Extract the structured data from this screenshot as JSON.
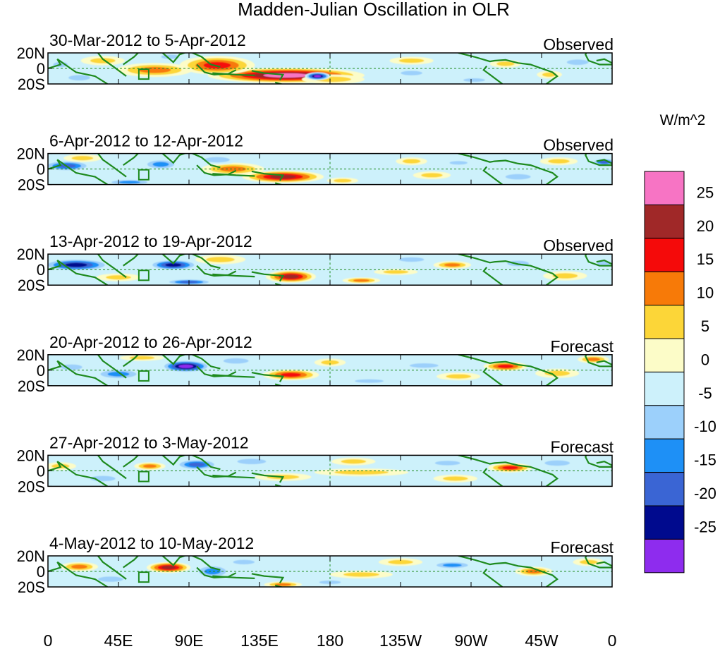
{
  "chart_data": {
    "type": "heatmap",
    "title": "Madden-Julian Oscillation in OLR",
    "variable": "OLR anomaly",
    "units_label": "W/m^2",
    "x_ticks": [
      "0",
      "45E",
      "90E",
      "135E",
      "180",
      "135W",
      "90W",
      "45W",
      "0"
    ],
    "x_range_deg": [
      0,
      360
    ],
    "y_ticks": [
      "20N",
      "0",
      "20S"
    ],
    "y_range_deg": [
      -20,
      20
    ],
    "legend": {
      "placement": "right",
      "tick_labels": [
        "25",
        "20",
        "15",
        "10",
        "5",
        "0",
        "-5",
        "-10",
        "-15",
        "-20",
        "-25"
      ],
      "colors": [
        "#f774c4",
        "#a02828",
        "#f50a0a",
        "#f77a08",
        "#fcd638",
        "#fcfcc8",
        "#cdf1fb",
        "#9cd0fb",
        "#1e90f6",
        "#3a65d4",
        "#000a8e",
        "#8e2cee"
      ]
    },
    "panels": [
      {
        "period": "30-Mar-2012 to 5-Apr-2012",
        "status": "Observed",
        "features": [
          {
            "lon": 152,
            "lat": -9,
            "rx": 50,
            "ry": 10,
            "value": 25
          },
          {
            "lon": 108,
            "lat": 4,
            "rx": 24,
            "ry": 12,
            "value": 18
          },
          {
            "lon": 68,
            "lat": -2,
            "rx": 24,
            "ry": 9,
            "value": 12
          },
          {
            "lon": 35,
            "lat": 10,
            "rx": 14,
            "ry": 6,
            "value": 8
          },
          {
            "lon": 182,
            "lat": -14,
            "rx": 20,
            "ry": 6,
            "value": 7
          },
          {
            "lon": 172,
            "lat": -10,
            "rx": 8,
            "ry": 5,
            "value": -27
          },
          {
            "lon": 78,
            "lat": 15,
            "rx": 10,
            "ry": 5,
            "value": -8
          },
          {
            "lon": 20,
            "lat": -12,
            "rx": 12,
            "ry": 6,
            "value": -9
          },
          {
            "lon": 8,
            "lat": 5,
            "rx": 8,
            "ry": 6,
            "value": -6
          },
          {
            "lon": 232,
            "lat": 10,
            "rx": 14,
            "ry": 5,
            "value": 7
          },
          {
            "lon": 232,
            "lat": -6,
            "rx": 12,
            "ry": 5,
            "value": -6
          },
          {
            "lon": 292,
            "lat": 6,
            "rx": 10,
            "ry": 5,
            "value": 7
          },
          {
            "lon": 338,
            "lat": 8,
            "rx": 12,
            "ry": 6,
            "value": -9
          },
          {
            "lon": 272,
            "lat": -15,
            "rx": 12,
            "ry": 4,
            "value": -6
          },
          {
            "lon": 320,
            "lat": -8,
            "rx": 8,
            "ry": 5,
            "value": 6
          }
        ]
      },
      {
        "period": "6-Apr-2012 to 12-Apr-2012",
        "status": "Observed",
        "features": [
          {
            "lon": 150,
            "lat": -10,
            "rx": 26,
            "ry": 8,
            "value": 23
          },
          {
            "lon": 118,
            "lat": 0,
            "rx": 20,
            "ry": 8,
            "value": 11
          },
          {
            "lon": 188,
            "lat": -15,
            "rx": 10,
            "ry": 4,
            "value": 9
          },
          {
            "lon": 72,
            "lat": 6,
            "rx": 12,
            "ry": 7,
            "value": -12
          },
          {
            "lon": 12,
            "lat": 4,
            "rx": 16,
            "ry": 7,
            "value": -18
          },
          {
            "lon": 52,
            "lat": -17,
            "rx": 16,
            "ry": 4,
            "value": -14
          },
          {
            "lon": 108,
            "lat": 12,
            "rx": 14,
            "ry": 6,
            "value": -8
          },
          {
            "lon": 22,
            "lat": 14,
            "rx": 12,
            "ry": 5,
            "value": 9
          },
          {
            "lon": 232,
            "lat": 10,
            "rx": 10,
            "ry": 5,
            "value": 7
          },
          {
            "lon": 245,
            "lat": -8,
            "rx": 12,
            "ry": 5,
            "value": 6
          },
          {
            "lon": 262,
            "lat": 8,
            "rx": 10,
            "ry": 4,
            "value": -7
          },
          {
            "lon": 300,
            "lat": -10,
            "rx": 14,
            "ry": 6,
            "value": -8
          },
          {
            "lon": 355,
            "lat": 9,
            "rx": 8,
            "ry": 5,
            "value": -18
          },
          {
            "lon": 326,
            "lat": 10,
            "rx": 12,
            "ry": 5,
            "value": 6
          }
        ]
      },
      {
        "period": "13-Apr-2012 to 19-Apr-2012",
        "status": "Observed",
        "features": [
          {
            "lon": 155,
            "lat": -9,
            "rx": 16,
            "ry": 8,
            "value": 24
          },
          {
            "lon": 18,
            "lat": 6,
            "rx": 22,
            "ry": 8,
            "value": -22
          },
          {
            "lon": 80,
            "lat": 6,
            "rx": 16,
            "ry": 7,
            "value": -22
          },
          {
            "lon": 90,
            "lat": -16,
            "rx": 16,
            "ry": 4,
            "value": -18
          },
          {
            "lon": 110,
            "lat": 13,
            "rx": 16,
            "ry": 6,
            "value": 8
          },
          {
            "lon": 45,
            "lat": -10,
            "rx": 14,
            "ry": 5,
            "value": 7
          },
          {
            "lon": 200,
            "lat": -14,
            "rx": 12,
            "ry": 4,
            "value": 13
          },
          {
            "lon": 222,
            "lat": -3,
            "rx": 14,
            "ry": 4,
            "value": 8
          },
          {
            "lon": 258,
            "lat": 6,
            "rx": 12,
            "ry": 5,
            "value": 12
          },
          {
            "lon": 232,
            "lat": 13,
            "rx": 14,
            "ry": 5,
            "value": -6
          },
          {
            "lon": 300,
            "lat": 8,
            "rx": 12,
            "ry": 6,
            "value": -9
          },
          {
            "lon": 330,
            "lat": -8,
            "rx": 14,
            "ry": 6,
            "value": 7
          },
          {
            "lon": 355,
            "lat": 8,
            "rx": 8,
            "ry": 6,
            "value": -9
          }
        ]
      },
      {
        "period": "20-Apr-2012 to 26-Apr-2012",
        "status": "Forecast",
        "features": [
          {
            "lon": 88,
            "lat": 5,
            "rx": 16,
            "ry": 8,
            "value": -26
          },
          {
            "lon": 155,
            "lat": -6,
            "rx": 18,
            "ry": 7,
            "value": 18
          },
          {
            "lon": 45,
            "lat": -5,
            "rx": 16,
            "ry": 7,
            "value": -14
          },
          {
            "lon": 120,
            "lat": 12,
            "rx": 14,
            "ry": 6,
            "value": -8
          },
          {
            "lon": 15,
            "lat": 4,
            "rx": 12,
            "ry": 6,
            "value": -9
          },
          {
            "lon": 60,
            "lat": 16,
            "rx": 14,
            "ry": 4,
            "value": 8
          },
          {
            "lon": 292,
            "lat": 5,
            "rx": 14,
            "ry": 6,
            "value": 18
          },
          {
            "lon": 325,
            "lat": -4,
            "rx": 14,
            "ry": 6,
            "value": 9
          },
          {
            "lon": 262,
            "lat": -8,
            "rx": 14,
            "ry": 5,
            "value": 7
          },
          {
            "lon": 240,
            "lat": 6,
            "rx": 16,
            "ry": 5,
            "value": -8
          },
          {
            "lon": 205,
            "lat": -14,
            "rx": 16,
            "ry": 4,
            "value": -9
          },
          {
            "lon": 348,
            "lat": 14,
            "rx": 10,
            "ry": 5,
            "value": 11
          },
          {
            "lon": 180,
            "lat": 10,
            "rx": 10,
            "ry": 5,
            "value": 6
          }
        ]
      },
      {
        "period": "27-Apr-2012 to 3-May-2012",
        "status": "Forecast",
        "features": [
          {
            "lon": 95,
            "lat": 8,
            "rx": 14,
            "ry": 7,
            "value": -19
          },
          {
            "lon": 65,
            "lat": 6,
            "rx": 10,
            "ry": 5,
            "value": 14
          },
          {
            "lon": 295,
            "lat": 4,
            "rx": 14,
            "ry": 6,
            "value": 18
          },
          {
            "lon": 200,
            "lat": -2,
            "rx": 30,
            "ry": 5,
            "value": 8
          },
          {
            "lon": 8,
            "lat": 6,
            "rx": 10,
            "ry": 5,
            "value": 9
          },
          {
            "lon": 130,
            "lat": 12,
            "rx": 16,
            "ry": 6,
            "value": -8
          },
          {
            "lon": 150,
            "lat": -8,
            "rx": 18,
            "ry": 5,
            "value": 6
          },
          {
            "lon": 35,
            "lat": -10,
            "rx": 14,
            "ry": 6,
            "value": -8
          },
          {
            "lon": 255,
            "lat": 10,
            "rx": 14,
            "ry": 5,
            "value": -7
          },
          {
            "lon": 260,
            "lat": -10,
            "rx": 14,
            "ry": 5,
            "value": 7
          },
          {
            "lon": 325,
            "lat": 10,
            "rx": 14,
            "ry": 6,
            "value": -8
          },
          {
            "lon": 195,
            "lat": 12,
            "rx": 14,
            "ry": 5,
            "value": 7
          }
        ]
      },
      {
        "period": "4-May-2012 to 10-May-2012",
        "status": "Forecast",
        "features": [
          {
            "lon": 77,
            "lat": 5,
            "rx": 14,
            "ry": 7,
            "value": 24
          },
          {
            "lon": 105,
            "lat": 0,
            "rx": 12,
            "ry": 9,
            "value": -11
          },
          {
            "lon": 150,
            "lat": -17,
            "rx": 12,
            "ry": 4,
            "value": 13
          },
          {
            "lon": 20,
            "lat": 6,
            "rx": 12,
            "ry": 6,
            "value": 12
          },
          {
            "lon": 40,
            "lat": -10,
            "rx": 14,
            "ry": 6,
            "value": -7
          },
          {
            "lon": 225,
            "lat": 12,
            "rx": 14,
            "ry": 5,
            "value": 9
          },
          {
            "lon": 258,
            "lat": 8,
            "rx": 14,
            "ry": 5,
            "value": -11
          },
          {
            "lon": 310,
            "lat": 0,
            "rx": 12,
            "ry": 6,
            "value": 11
          },
          {
            "lon": 200,
            "lat": -4,
            "rx": 20,
            "ry": 5,
            "value": 7
          },
          {
            "lon": 180,
            "lat": -14,
            "rx": 12,
            "ry": 4,
            "value": -9
          },
          {
            "lon": 125,
            "lat": 12,
            "rx": 12,
            "ry": 5,
            "value": -7
          },
          {
            "lon": 345,
            "lat": 12,
            "rx": 10,
            "ry": 5,
            "value": 8
          }
        ]
      }
    ]
  }
}
